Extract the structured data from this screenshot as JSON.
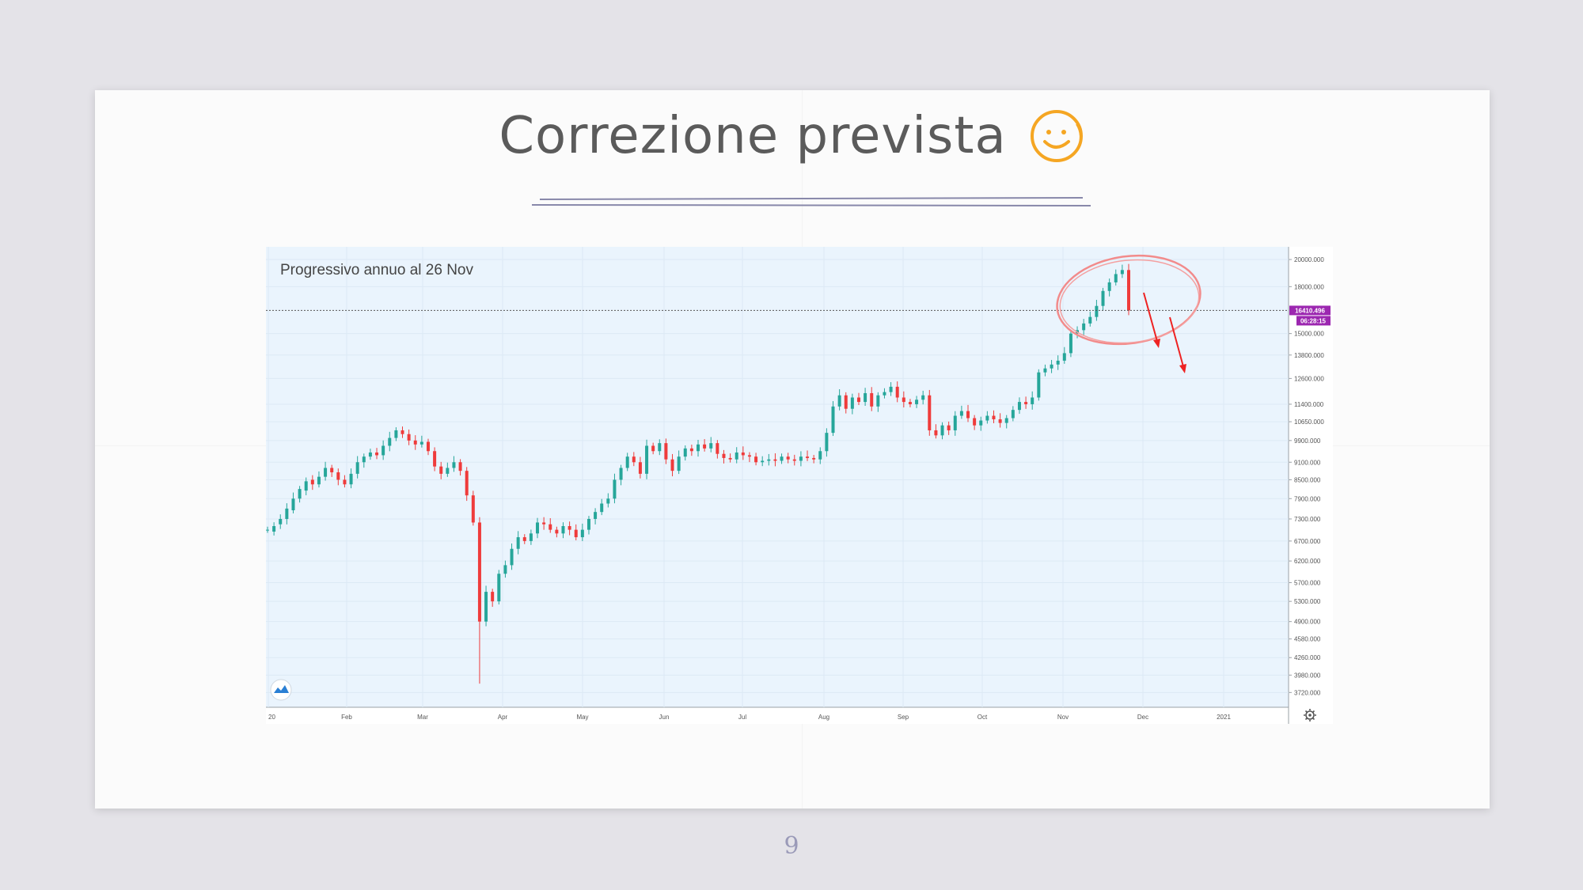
{
  "slide": {
    "title": "Correzione prevista",
    "title_emoji": "☺",
    "page_number": "9"
  },
  "chart_data": {
    "type": "candlestick",
    "title": "Progressivo annuo al 26 Nov",
    "x_tick_labels": [
      "20",
      "Feb",
      "Mar",
      "Apr",
      "May",
      "Jun",
      "Jul",
      "Aug",
      "Sep",
      "Oct",
      "Nov",
      "Dec",
      "2021"
    ],
    "y_tick_labels": [
      "20000.000",
      "18000.000",
      "15000.000",
      "13800.000",
      "12600.000",
      "11400.000",
      "10650.000",
      "9900.000",
      "9100.000",
      "8500.000",
      "7900.000",
      "7300.000",
      "6700.000",
      "6200.000",
      "5700.000",
      "5300.000",
      "4900.000",
      "4580.000",
      "4260.000",
      "3980.000",
      "3720.000"
    ],
    "y_scale": "log",
    "ylim": [
      3600,
      20500
    ],
    "current_value_label": "16410.496",
    "countdown_label": "06:28:15",
    "current_value": 16410,
    "colors": {
      "up": "#26a69a",
      "down": "#ef3b3b",
      "background": "#eaf4fd",
      "marker": "#9c27b0",
      "annotation": "#ee2222"
    },
    "annotation": "circle around recent top with two downward arrows",
    "closes": [
      [
        7000,
        7000
      ],
      [
        7100,
        6950
      ],
      [
        7300,
        7150
      ],
      [
        7600,
        7300
      ],
      [
        7900,
        7550
      ],
      [
        8200,
        7900
      ],
      [
        8450,
        8150
      ],
      [
        8350,
        8500
      ],
      [
        8600,
        8350
      ],
      [
        8900,
        8600
      ],
      [
        8750,
        8900
      ],
      [
        8500,
        8750
      ],
      [
        8350,
        8500
      ],
      [
        8700,
        8350
      ],
      [
        9100,
        8700
      ],
      [
        9300,
        9100
      ],
      [
        9450,
        9300
      ],
      [
        9350,
        9450
      ],
      [
        9700,
        9350
      ],
      [
        10000,
        9700
      ],
      [
        10300,
        10000
      ],
      [
        10150,
        10300
      ],
      [
        9900,
        10150
      ],
      [
        9750,
        9900
      ],
      [
        9850,
        9750
      ],
      [
        9500,
        9850
      ],
      [
        8950,
        9500
      ],
      [
        8700,
        8950
      ],
      [
        8900,
        8700
      ],
      [
        9100,
        8900
      ],
      [
        8800,
        9100
      ],
      [
        8000,
        8800
      ],
      [
        7200,
        8000
      ],
      [
        4900,
        7200
      ],
      [
        5500,
        4900
      ],
      [
        5300,
        5500
      ],
      [
        5900,
        5300
      ],
      [
        6100,
        5900
      ],
      [
        6500,
        6100
      ],
      [
        6800,
        6500
      ],
      [
        6700,
        6800
      ],
      [
        6900,
        6700
      ],
      [
        7200,
        6900
      ],
      [
        7150,
        7200
      ],
      [
        7000,
        7150
      ],
      [
        6900,
        7000
      ],
      [
        7100,
        6900
      ],
      [
        7000,
        7100
      ],
      [
        6800,
        7000
      ],
      [
        7000,
        6800
      ],
      [
        7300,
        7000
      ],
      [
        7500,
        7300
      ],
      [
        7750,
        7500
      ],
      [
        7900,
        7750
      ],
      [
        8500,
        7900
      ],
      [
        8900,
        8500
      ],
      [
        9300,
        8900
      ],
      [
        9100,
        9300
      ],
      [
        8700,
        9100
      ],
      [
        9700,
        8700
      ],
      [
        9500,
        9700
      ],
      [
        9800,
        9500
      ],
      [
        9200,
        9800
      ],
      [
        8800,
        9200
      ],
      [
        9300,
        8800
      ],
      [
        9600,
        9300
      ],
      [
        9500,
        9600
      ],
      [
        9750,
        9500
      ],
      [
        9600,
        9750
      ],
      [
        9800,
        9600
      ],
      [
        9400,
        9800
      ],
      [
        9250,
        9400
      ],
      [
        9200,
        9250
      ],
      [
        9450,
        9200
      ],
      [
        9350,
        9450
      ],
      [
        9300,
        9350
      ],
      [
        9100,
        9300
      ],
      [
        9150,
        9100
      ],
      [
        9200,
        9150
      ],
      [
        9150,
        9200
      ],
      [
        9300,
        9150
      ],
      [
        9200,
        9300
      ],
      [
        9150,
        9200
      ],
      [
        9300,
        9150
      ],
      [
        9250,
        9300
      ],
      [
        9200,
        9250
      ],
      [
        9500,
        9200
      ],
      [
        10200,
        9500
      ],
      [
        11300,
        10200
      ],
      [
        11800,
        11300
      ],
      [
        11200,
        11800
      ],
      [
        11700,
        11200
      ],
      [
        11500,
        11700
      ],
      [
        11900,
        11500
      ],
      [
        11300,
        11900
      ],
      [
        11800,
        11300
      ],
      [
        11950,
        11800
      ],
      [
        12200,
        11950
      ],
      [
        11700,
        12200
      ],
      [
        11500,
        11700
      ],
      [
        11400,
        11500
      ],
      [
        11600,
        11400
      ],
      [
        11800,
        11600
      ],
      [
        10300,
        11800
      ],
      [
        10100,
        10300
      ],
      [
        10500,
        10100
      ],
      [
        10300,
        10500
      ],
      [
        10900,
        10300
      ],
      [
        11100,
        10900
      ],
      [
        10800,
        11100
      ],
      [
        10500,
        10800
      ],
      [
        10700,
        10500
      ],
      [
        10900,
        10700
      ],
      [
        10750,
        10900
      ],
      [
        10600,
        10750
      ],
      [
        10800,
        10600
      ],
      [
        11150,
        10800
      ],
      [
        11500,
        11150
      ],
      [
        11400,
        11500
      ],
      [
        11700,
        11400
      ],
      [
        12900,
        11700
      ],
      [
        13100,
        12900
      ],
      [
        13300,
        13100
      ],
      [
        13500,
        13300
      ],
      [
        13900,
        13500
      ],
      [
        15000,
        13900
      ],
      [
        15200,
        15000
      ],
      [
        15600,
        15200
      ],
      [
        16000,
        15600
      ],
      [
        16700,
        16000
      ],
      [
        17700,
        16700
      ],
      [
        18300,
        17700
      ],
      [
        18900,
        18300
      ],
      [
        19200,
        18900
      ],
      [
        16410,
        19200
      ]
    ]
  }
}
